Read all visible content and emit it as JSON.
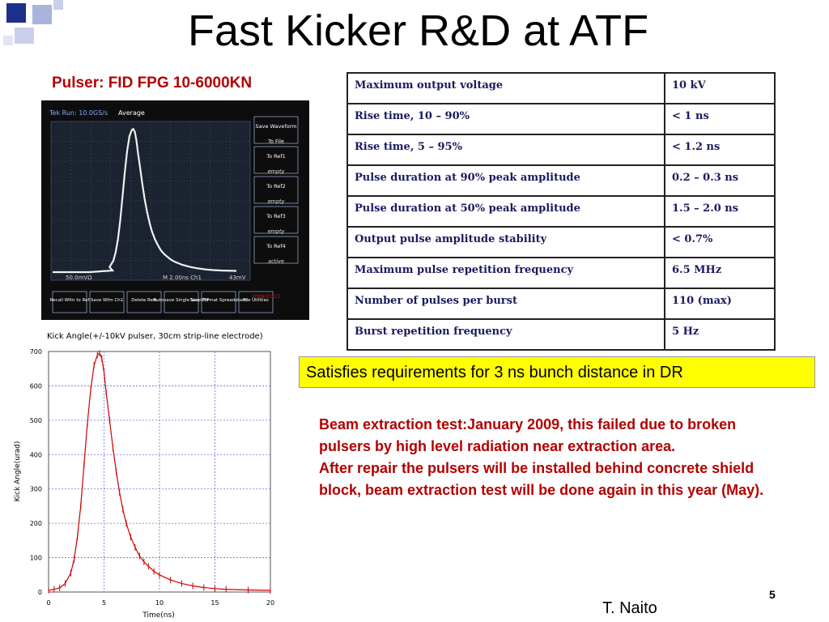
{
  "slide": {
    "title": "Fast Kicker R&D at ATF",
    "subtitle": "Pulser: FID FPG 10-6000KN",
    "callout": "Satisfies requirements for 3 ns bunch distance in DR",
    "notes": [
      "Beam extraction test:January 2009, this failed due to broken pulsers by high level radiation near extraction area.",
      "After repair the pulsers will be installed behind concrete shield block, beam extraction test will be done again in this year (May)."
    ],
    "page_number": "5",
    "author": "T. Naito"
  },
  "spec_table": [
    {
      "param": "Maximum output voltage",
      "value": "10 kV"
    },
    {
      "param": "Rise time, 10 – 90%",
      "value": "< 1 ns"
    },
    {
      "param": "Rise time, 5 – 95%",
      "value": "< 1.2 ns"
    },
    {
      "param": "Pulse duration at 90% peak amplitude",
      "value": "0.2 – 0.3 ns"
    },
    {
      "param": "Pulse duration at 50% peak amplitude",
      "value": "1.5 – 2.0 ns"
    },
    {
      "param": "Output pulse amplitude stability",
      "value": "< 0.7%"
    },
    {
      "param": "Maximum pulse repetition frequency",
      "value": "6.5 MHz"
    },
    {
      "param": "Number of pulses per burst",
      "value": "110 (max)"
    },
    {
      "param": "Burst repetition frequency",
      "value": "5 Hz"
    }
  ],
  "scope": {
    "header": "Tek Run: 10.0GS/s",
    "mode": "Average",
    "ch1_scale": "50.0mVΩ",
    "timebase": "M 2.00ns Ch1",
    "trigger": "43mV",
    "menu": [
      "Save Waveform",
      "To File",
      "To Ref1",
      "empty",
      "To Ref2",
      "empty",
      "To Ref3",
      "empty",
      "To Ref4",
      "active"
    ],
    "bottom_menu": [
      "Recall Wfm to Ref",
      "Save Wfm Ch1",
      "Delete Refs",
      "Autosave Single Seq OFF",
      "Save Format Spreadsheet",
      "File Utilities"
    ],
    "date": "2009/01/13"
  },
  "chart_data": {
    "type": "line",
    "title": "Kick Angle(+/-10kV pulser, 30cm strip-line electrode)",
    "xlabel": "Time(ns)",
    "ylabel": "Kick Angle(urad)",
    "xlim": [
      0,
      20
    ],
    "ylim": [
      0,
      700
    ],
    "xticks": [
      "0",
      "5",
      "10",
      "15",
      "20"
    ],
    "yticks": [
      "0",
      "100",
      "200",
      "300",
      "400",
      "500",
      "600",
      "700"
    ],
    "grid": true,
    "series": [
      {
        "color": "#cc0000",
        "x": [
          0,
          0.5,
          1,
          1.5,
          2,
          2.3,
          2.6,
          2.9,
          3.2,
          3.5,
          3.8,
          4.1,
          4.4,
          4.6,
          4.8,
          5.0,
          5.2,
          5.5,
          5.8,
          6.1,
          6.4,
          6.7,
          7.0,
          7.4,
          7.8,
          8.2,
          8.6,
          9.0,
          9.5,
          10,
          11,
          12,
          13,
          14,
          15,
          16,
          18,
          20
        ],
        "y": [
          5,
          8,
          12,
          25,
          55,
          95,
          160,
          250,
          370,
          490,
          590,
          660,
          690,
          695,
          680,
          640,
          580,
          500,
          420,
          350,
          290,
          240,
          200,
          160,
          130,
          105,
          88,
          75,
          60,
          50,
          35,
          25,
          18,
          13,
          10,
          8,
          6,
          5
        ]
      }
    ]
  }
}
